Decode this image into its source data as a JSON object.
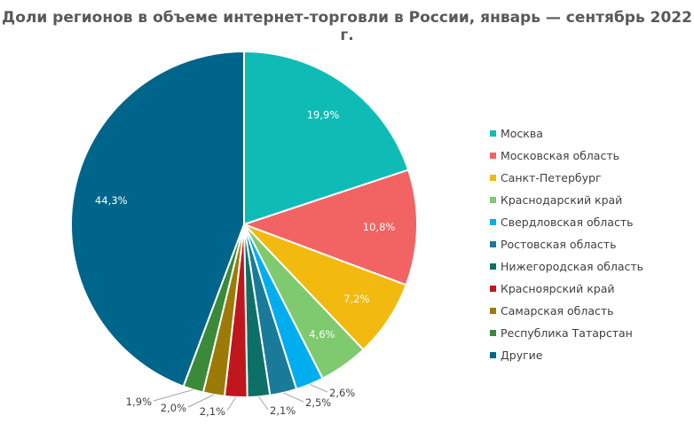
{
  "chart_data": {
    "type": "pie",
    "title": "Доли регионов в объеме интернет-торговли  в России, январь — сентябрь  2022  г.",
    "slices": [
      {
        "name": "Москва",
        "value": 19.9,
        "label": "19,9%",
        "color": "#0fbcb5",
        "label_inside": true
      },
      {
        "name": "Московская область",
        "value": 10.8,
        "label": "10,8%",
        "color": "#f26363",
        "label_inside": true
      },
      {
        "name": "Санкт-Петербург",
        "value": 7.2,
        "label": "7,2%",
        "color": "#f2b90f",
        "label_inside": true
      },
      {
        "name": "Краснодарский край",
        "value": 4.6,
        "label": "4,6%",
        "color": "#7fc96f",
        "label_inside": true
      },
      {
        "name": "Свердловская область",
        "value": 2.6,
        "label": "2,6%",
        "color": "#00aeef",
        "label_inside": false
      },
      {
        "name": "Ростовская область",
        "value": 2.5,
        "label": "2,5%",
        "color": "#1a7a9a",
        "label_inside": false
      },
      {
        "name": "Нижегородская  область",
        "value": 2.1,
        "label": "2,1%",
        "color": "#0d7066",
        "label_inside": false
      },
      {
        "name": "Красноярский  край",
        "value": 2.1,
        "label": "2,1%",
        "color": "#c0161d",
        "label_inside": false
      },
      {
        "name": "Самарская область",
        "value": 2.0,
        "label": "2,0%",
        "color": "#9b7a06",
        "label_inside": false
      },
      {
        "name": "Республика  Татарстан",
        "value": 1.9,
        "label": "1,9%",
        "color": "#3a8a3a",
        "label_inside": false
      },
      {
        "name": "Другие",
        "value": 44.3,
        "label": "44,3%",
        "color": "#00658a",
        "label_inside": true
      }
    ],
    "legend_position": "right"
  }
}
